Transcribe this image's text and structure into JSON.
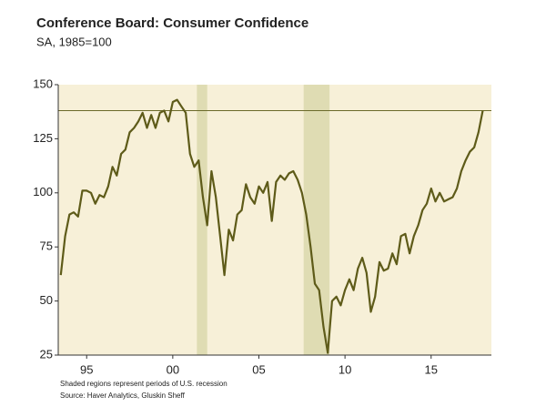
{
  "chart_data": {
    "type": "line",
    "title": "Conference Board: Consumer Confidence",
    "subtitle": "SA, 1985=100",
    "footnotes": [
      "Shaded regions represent periods of U.S. recession",
      "Source: Haver Analytics, Gluskin Sheff"
    ],
    "x": [
      1993.5,
      1993.75,
      1994,
      1994.25,
      1994.5,
      1994.75,
      1995,
      1995.25,
      1995.5,
      1995.75,
      1996,
      1996.25,
      1996.5,
      1996.75,
      1997,
      1997.25,
      1997.5,
      1997.75,
      1998,
      1998.25,
      1998.5,
      1998.75,
      1999,
      1999.25,
      1999.5,
      1999.75,
      2000,
      2000.25,
      2000.5,
      2000.75,
      2001,
      2001.25,
      2001.5,
      2001.75,
      2002,
      2002.25,
      2002.5,
      2002.75,
      2003,
      2003.25,
      2003.5,
      2003.75,
      2004,
      2004.25,
      2004.5,
      2004.75,
      2005,
      2005.25,
      2005.5,
      2005.75,
      2006,
      2006.25,
      2006.5,
      2006.75,
      2007,
      2007.25,
      2007.5,
      2007.75,
      2008,
      2008.25,
      2008.5,
      2008.75,
      2009,
      2009.25,
      2009.5,
      2009.75,
      2010,
      2010.25,
      2010.5,
      2010.75,
      2011,
      2011.25,
      2011.5,
      2011.75,
      2012,
      2012.25,
      2012.5,
      2012.75,
      2013,
      2013.25,
      2013.5,
      2013.75,
      2014,
      2014.25,
      2014.5,
      2014.75,
      2015,
      2015.25,
      2015.5,
      2015.75,
      2016,
      2016.25,
      2016.5,
      2016.75,
      2017,
      2017.25,
      2017.5,
      2017.75,
      2018
    ],
    "series": [
      {
        "name": "Consumer Confidence",
        "color": "#5e5b19",
        "values": [
          62,
          80,
          90,
          91,
          89,
          101,
          101,
          100,
          95,
          99,
          98,
          103,
          112,
          108,
          118,
          120,
          128,
          130,
          133,
          137,
          130,
          136,
          130,
          137,
          138,
          133,
          142,
          143,
          140,
          137,
          118,
          112,
          115,
          98,
          85,
          110,
          98,
          80,
          62,
          83,
          78,
          90,
          92,
          104,
          98,
          95,
          103,
          100,
          105,
          87,
          105,
          108,
          106,
          109,
          110,
          106,
          100,
          90,
          75,
          58,
          55,
          38,
          26,
          50,
          52,
          48,
          55,
          60,
          55,
          65,
          70,
          63,
          45,
          52,
          68,
          64,
          65,
          72,
          67,
          80,
          81,
          72,
          80,
          85,
          92,
          95,
          102,
          96,
          100,
          96,
          97,
          98,
          102,
          110,
          115,
          119,
          121,
          128,
          138
        ]
      }
    ],
    "reference_line": 138,
    "recessions": [
      [
        2001.4,
        2002.0
      ],
      [
        2007.6,
        2009.1
      ]
    ],
    "xlim": [
      1993.35,
      2018.5
    ],
    "xticks": [
      {
        "value": 1995,
        "label": "95"
      },
      {
        "value": 2000,
        "label": "00"
      },
      {
        "value": 2005,
        "label": "05"
      },
      {
        "value": 2010,
        "label": "10"
      },
      {
        "value": 2015,
        "label": "15"
      }
    ],
    "ylim": [
      25,
      150
    ],
    "yticks": [
      25,
      50,
      75,
      100,
      125,
      150
    ],
    "background": "#f7f0d8",
    "recession_color": "#dfdcb3"
  }
}
